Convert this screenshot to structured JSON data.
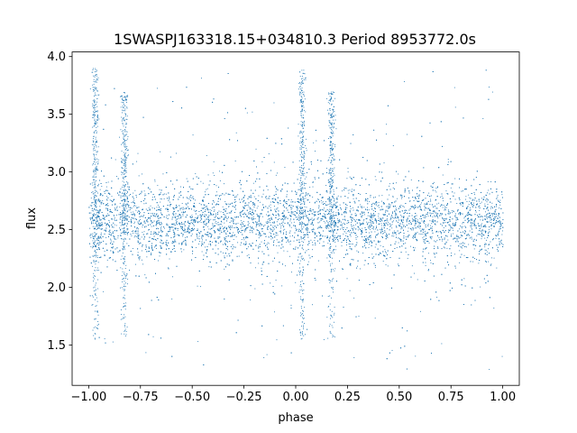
{
  "chart_data": {
    "type": "scatter",
    "title": "1SWASPJ163318.15+034810.3 Period 8953772.0s",
    "xlabel": "phase",
    "ylabel": "flux",
    "xlim": [
      -1.08,
      1.08
    ],
    "ylim": [
      1.15,
      4.04
    ],
    "x_ticks": [
      -1.0,
      -0.75,
      -0.5,
      -0.25,
      0.0,
      0.25,
      0.5,
      0.75,
      1.0
    ],
    "x_tick_labels": [
      "−1.00",
      "−0.75",
      "−0.50",
      "−0.25",
      "0.00",
      "0.25",
      "0.50",
      "0.75",
      "1.00"
    ],
    "y_ticks": [
      1.5,
      2.0,
      2.5,
      3.0,
      3.5,
      4.0
    ],
    "y_tick_labels": [
      "1.5",
      "2.0",
      "2.5",
      "3.0",
      "3.5",
      "4.0"
    ],
    "grid": false,
    "legend": "none",
    "marker_color": "#1f77b4",
    "series": [
      {
        "x_range": [
          -1.0,
          1.0
        ],
        "core_band": [
          2.3,
          2.8
        ],
        "median_flux": 2.57,
        "outlier_range": [
          1.27,
          3.9
        ],
        "spikes": [
          {
            "phase": -0.97,
            "flux_max": 3.9
          },
          {
            "phase": -0.83,
            "flux_max": 3.7
          },
          {
            "phase": 0.03,
            "flux_max": 3.9
          },
          {
            "phase": 0.17,
            "flux_max": 3.7
          }
        ]
      }
    ]
  }
}
